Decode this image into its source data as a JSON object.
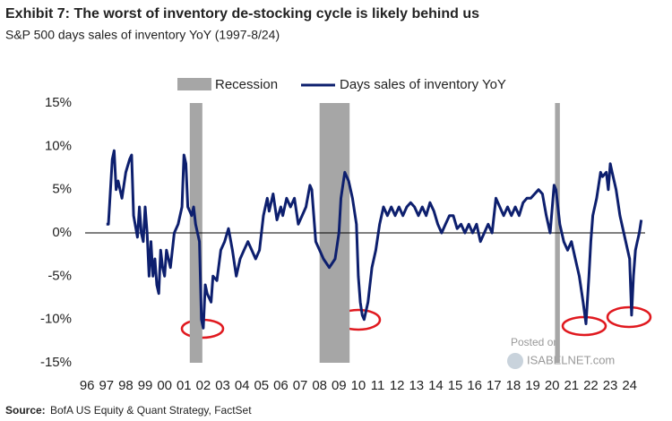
{
  "chart_data": {
    "type": "line",
    "title": "Exhibit 7: The worst of inventory de-stocking cycle is likely behind us",
    "subtitle": "S&P 500 days sales of inventory YoY (1997-8/24)",
    "source_label": "Source:",
    "source": "BofA US Equity & Quant Strategy, FactSet",
    "watermark": [
      "Posted on",
      "ISABELNET.com"
    ],
    "recession_label": "Recession",
    "recession_color": "#a6a6a6",
    "recessions": [
      [
        2001.3,
        2001.95
      ],
      [
        2008.0,
        2009.55
      ],
      [
        2020.15,
        2020.4
      ]
    ],
    "x": [
      1997.0,
      1997.1,
      1997.3,
      1997.4,
      1997.5,
      1997.6,
      1997.8,
      1998.0,
      1998.2,
      1998.3,
      1998.4,
      1998.6,
      1998.7,
      1998.8,
      1998.9,
      1999.0,
      1999.1,
      1999.2,
      1999.3,
      1999.4,
      1999.5,
      1999.6,
      1999.7,
      1999.8,
      1999.9,
      2000.0,
      2000.1,
      2000.3,
      2000.5,
      2000.7,
      2000.9,
      2001.0,
      2001.1,
      2001.2,
      2001.3,
      2001.4,
      2001.5,
      2001.6,
      2001.8,
      2001.9,
      2002.0,
      2002.1,
      2002.2,
      2002.4,
      2002.5,
      2002.7,
      2002.9,
      2003.1,
      2003.3,
      2003.5,
      2003.7,
      2003.9,
      2004.1,
      2004.3,
      2004.5,
      2004.7,
      2004.9,
      2005.1,
      2005.3,
      2005.4,
      2005.6,
      2005.8,
      2006.0,
      2006.1,
      2006.3,
      2006.5,
      2006.7,
      2006.9,
      2007.1,
      2007.3,
      2007.5,
      2007.6,
      2007.8,
      2008.0,
      2008.2,
      2008.5,
      2008.8,
      2009.0,
      2009.1,
      2009.3,
      2009.5,
      2009.7,
      2009.9,
      2010.0,
      2010.1,
      2010.2,
      2010.3,
      2010.5,
      2010.7,
      2010.9,
      2011.1,
      2011.3,
      2011.5,
      2011.7,
      2011.9,
      2012.1,
      2012.3,
      2012.5,
      2012.7,
      2012.9,
      2013.1,
      2013.3,
      2013.5,
      2013.7,
      2013.9,
      2014.1,
      2014.3,
      2014.5,
      2014.7,
      2014.9,
      2015.1,
      2015.3,
      2015.5,
      2015.7,
      2015.9,
      2016.1,
      2016.3,
      2016.5,
      2016.7,
      2016.9,
      2017.1,
      2017.3,
      2017.5,
      2017.7,
      2017.9,
      2018.1,
      2018.3,
      2018.5,
      2018.7,
      2018.9,
      2019.1,
      2019.3,
      2019.5,
      2019.7,
      2019.9,
      2020.1,
      2020.2,
      2020.4,
      2020.6,
      2020.8,
      2021.0,
      2021.2,
      2021.4,
      2021.6,
      2021.75,
      2021.9,
      2022.0,
      2022.1,
      2022.3,
      2022.5,
      2022.6,
      2022.8,
      2022.9,
      2023.0,
      2023.1,
      2023.3,
      2023.5,
      2023.7,
      2023.9,
      2024.0,
      2024.1,
      2024.2,
      2024.3,
      2024.4,
      2024.5,
      2024.6
    ],
    "series": [
      {
        "name": "Days sales of inventory YoY",
        "color": "#0d1f6e",
        "values": [
          1,
          1,
          8.5,
          9.5,
          5,
          6,
          4,
          7,
          8.5,
          9,
          2,
          -0.5,
          3,
          0,
          -1,
          3,
          0,
          -5,
          -1,
          -5,
          -3,
          -6,
          -7,
          -2,
          -4,
          -5,
          -2,
          -4,
          0,
          1,
          3,
          9,
          8,
          3,
          2.5,
          2,
          3,
          1,
          -1,
          -10,
          -11,
          -6,
          -7,
          -8,
          -5,
          -5.5,
          -2,
          -1,
          0.5,
          -2,
          -5,
          -3,
          -2,
          -1,
          -2,
          -3,
          -2,
          2,
          4,
          2.5,
          4.5,
          1.5,
          3,
          2,
          4,
          3,
          4,
          1,
          2,
          3,
          5.5,
          5,
          -1,
          -2,
          -3,
          -4,
          -3,
          0,
          4,
          7,
          6,
          4,
          1,
          -5,
          -8,
          -9.5,
          -10,
          -8,
          -4,
          -2,
          1,
          3,
          2,
          3,
          2,
          3,
          2,
          3,
          3.5,
          3,
          2,
          3,
          2,
          3.5,
          2.5,
          1,
          0,
          1,
          2,
          2,
          0.5,
          1,
          0,
          1,
          0,
          1,
          -1,
          0,
          1,
          0,
          4,
          3,
          2,
          3,
          2,
          3,
          2,
          3.5,
          4,
          4,
          4.5,
          5,
          4.5,
          2,
          0,
          5.5,
          5,
          1,
          -1,
          -2,
          -1,
          -3,
          -5,
          -8,
          -10.5,
          -5,
          -1,
          2,
          4,
          7,
          6.5,
          7,
          5,
          8,
          7,
          5,
          2,
          0,
          -2,
          -3,
          -9.5,
          -5,
          -2,
          -1,
          0,
          1.5
        ]
      }
    ],
    "xlim": [
      1995.9,
      2024.8
    ],
    "xticks": [
      {
        "value": 1996,
        "label": "96"
      },
      {
        "value": 1997,
        "label": "97"
      },
      {
        "value": 1998,
        "label": "98"
      },
      {
        "value": 1999,
        "label": "99"
      },
      {
        "value": 2000,
        "label": "00"
      },
      {
        "value": 2001,
        "label": "01"
      },
      {
        "value": 2002,
        "label": "02"
      },
      {
        "value": 2003,
        "label": "03"
      },
      {
        "value": 2004,
        "label": "04"
      },
      {
        "value": 2005,
        "label": "05"
      },
      {
        "value": 2006,
        "label": "06"
      },
      {
        "value": 2007,
        "label": "07"
      },
      {
        "value": 2008,
        "label": "08"
      },
      {
        "value": 2009,
        "label": "09"
      },
      {
        "value": 2010,
        "label": "10"
      },
      {
        "value": 2011,
        "label": "11"
      },
      {
        "value": 2012,
        "label": "12"
      },
      {
        "value": 2013,
        "label": "13"
      },
      {
        "value": 2014,
        "label": "14"
      },
      {
        "value": 2015,
        "label": "15"
      },
      {
        "value": 2016,
        "label": "16"
      },
      {
        "value": 2017,
        "label": "17"
      },
      {
        "value": 2018,
        "label": "18"
      },
      {
        "value": 2019,
        "label": "19"
      },
      {
        "value": 2020,
        "label": "20"
      },
      {
        "value": 2021,
        "label": "21"
      },
      {
        "value": 2022,
        "label": "22"
      },
      {
        "value": 2023,
        "label": "23"
      },
      {
        "value": 2024,
        "label": "24"
      }
    ],
    "ylim": [
      -15,
      15
    ],
    "yticks": [
      {
        "value": -15,
        "label": "-15%"
      },
      {
        "value": -10,
        "label": "-10%"
      },
      {
        "value": -5,
        "label": "-5%"
      },
      {
        "value": 0,
        "label": "0%"
      },
      {
        "value": 5,
        "label": "5%"
      },
      {
        "value": 10,
        "label": "10%"
      },
      {
        "value": 15,
        "label": "15%"
      }
    ]
  }
}
